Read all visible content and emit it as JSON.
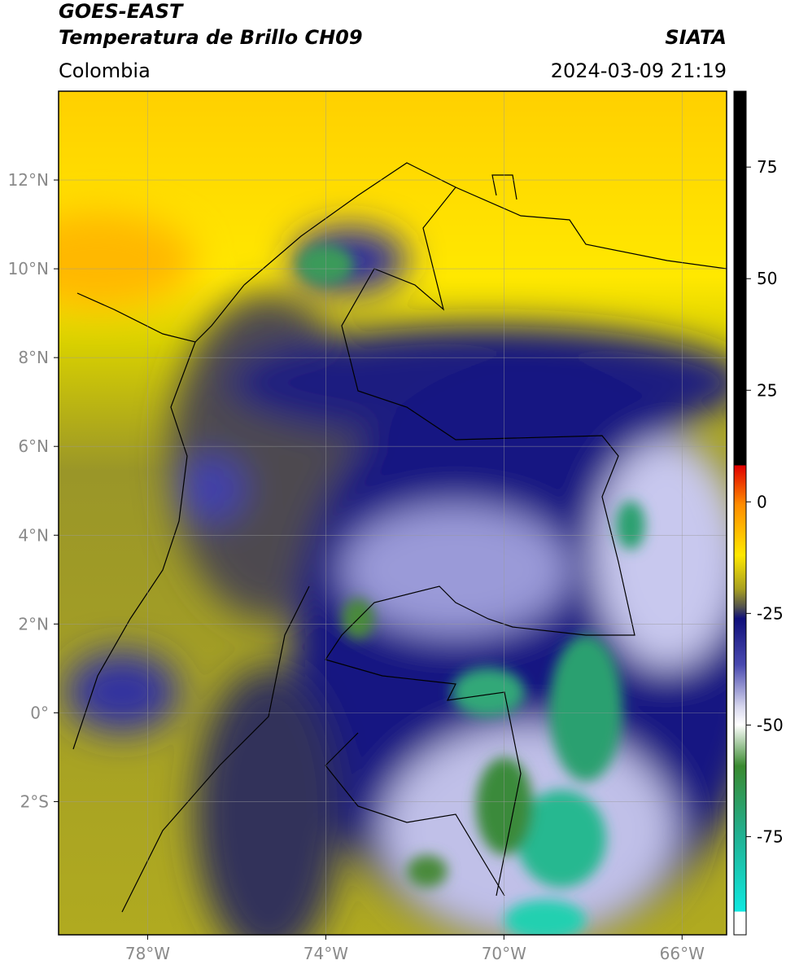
{
  "header": {
    "title": "GOES-EAST",
    "subtitle": "Temperatura de Brillo CH09",
    "region": "Colombia",
    "source": "SIATA",
    "datetime": "2024-03-09 21:19"
  },
  "map": {
    "lonlim": [
      -80,
      -65
    ],
    "latlim": [
      -5,
      14
    ],
    "lon_ticks": [
      {
        "value": -78,
        "label": "78°W"
      },
      {
        "value": -74,
        "label": "74°W"
      },
      {
        "value": -70,
        "label": "70°W"
      },
      {
        "value": -66,
        "label": "66°W"
      }
    ],
    "lat_ticks": [
      {
        "value": 12,
        "label": "12°N"
      },
      {
        "value": 10,
        "label": "10°N"
      },
      {
        "value": 8,
        "label": "8°N"
      },
      {
        "value": 6,
        "label": "6°N"
      },
      {
        "value": 4,
        "label": "4°N"
      },
      {
        "value": 2,
        "label": "2°N"
      },
      {
        "value": 0,
        "label": "0°"
      },
      {
        "value": -2,
        "label": "2°S"
      }
    ],
    "grid": true
  },
  "colorbar": {
    "vlim": [
      -97,
      92
    ],
    "ticks": [
      75,
      50,
      25,
      0,
      -25,
      -50,
      -75
    ]
  }
}
